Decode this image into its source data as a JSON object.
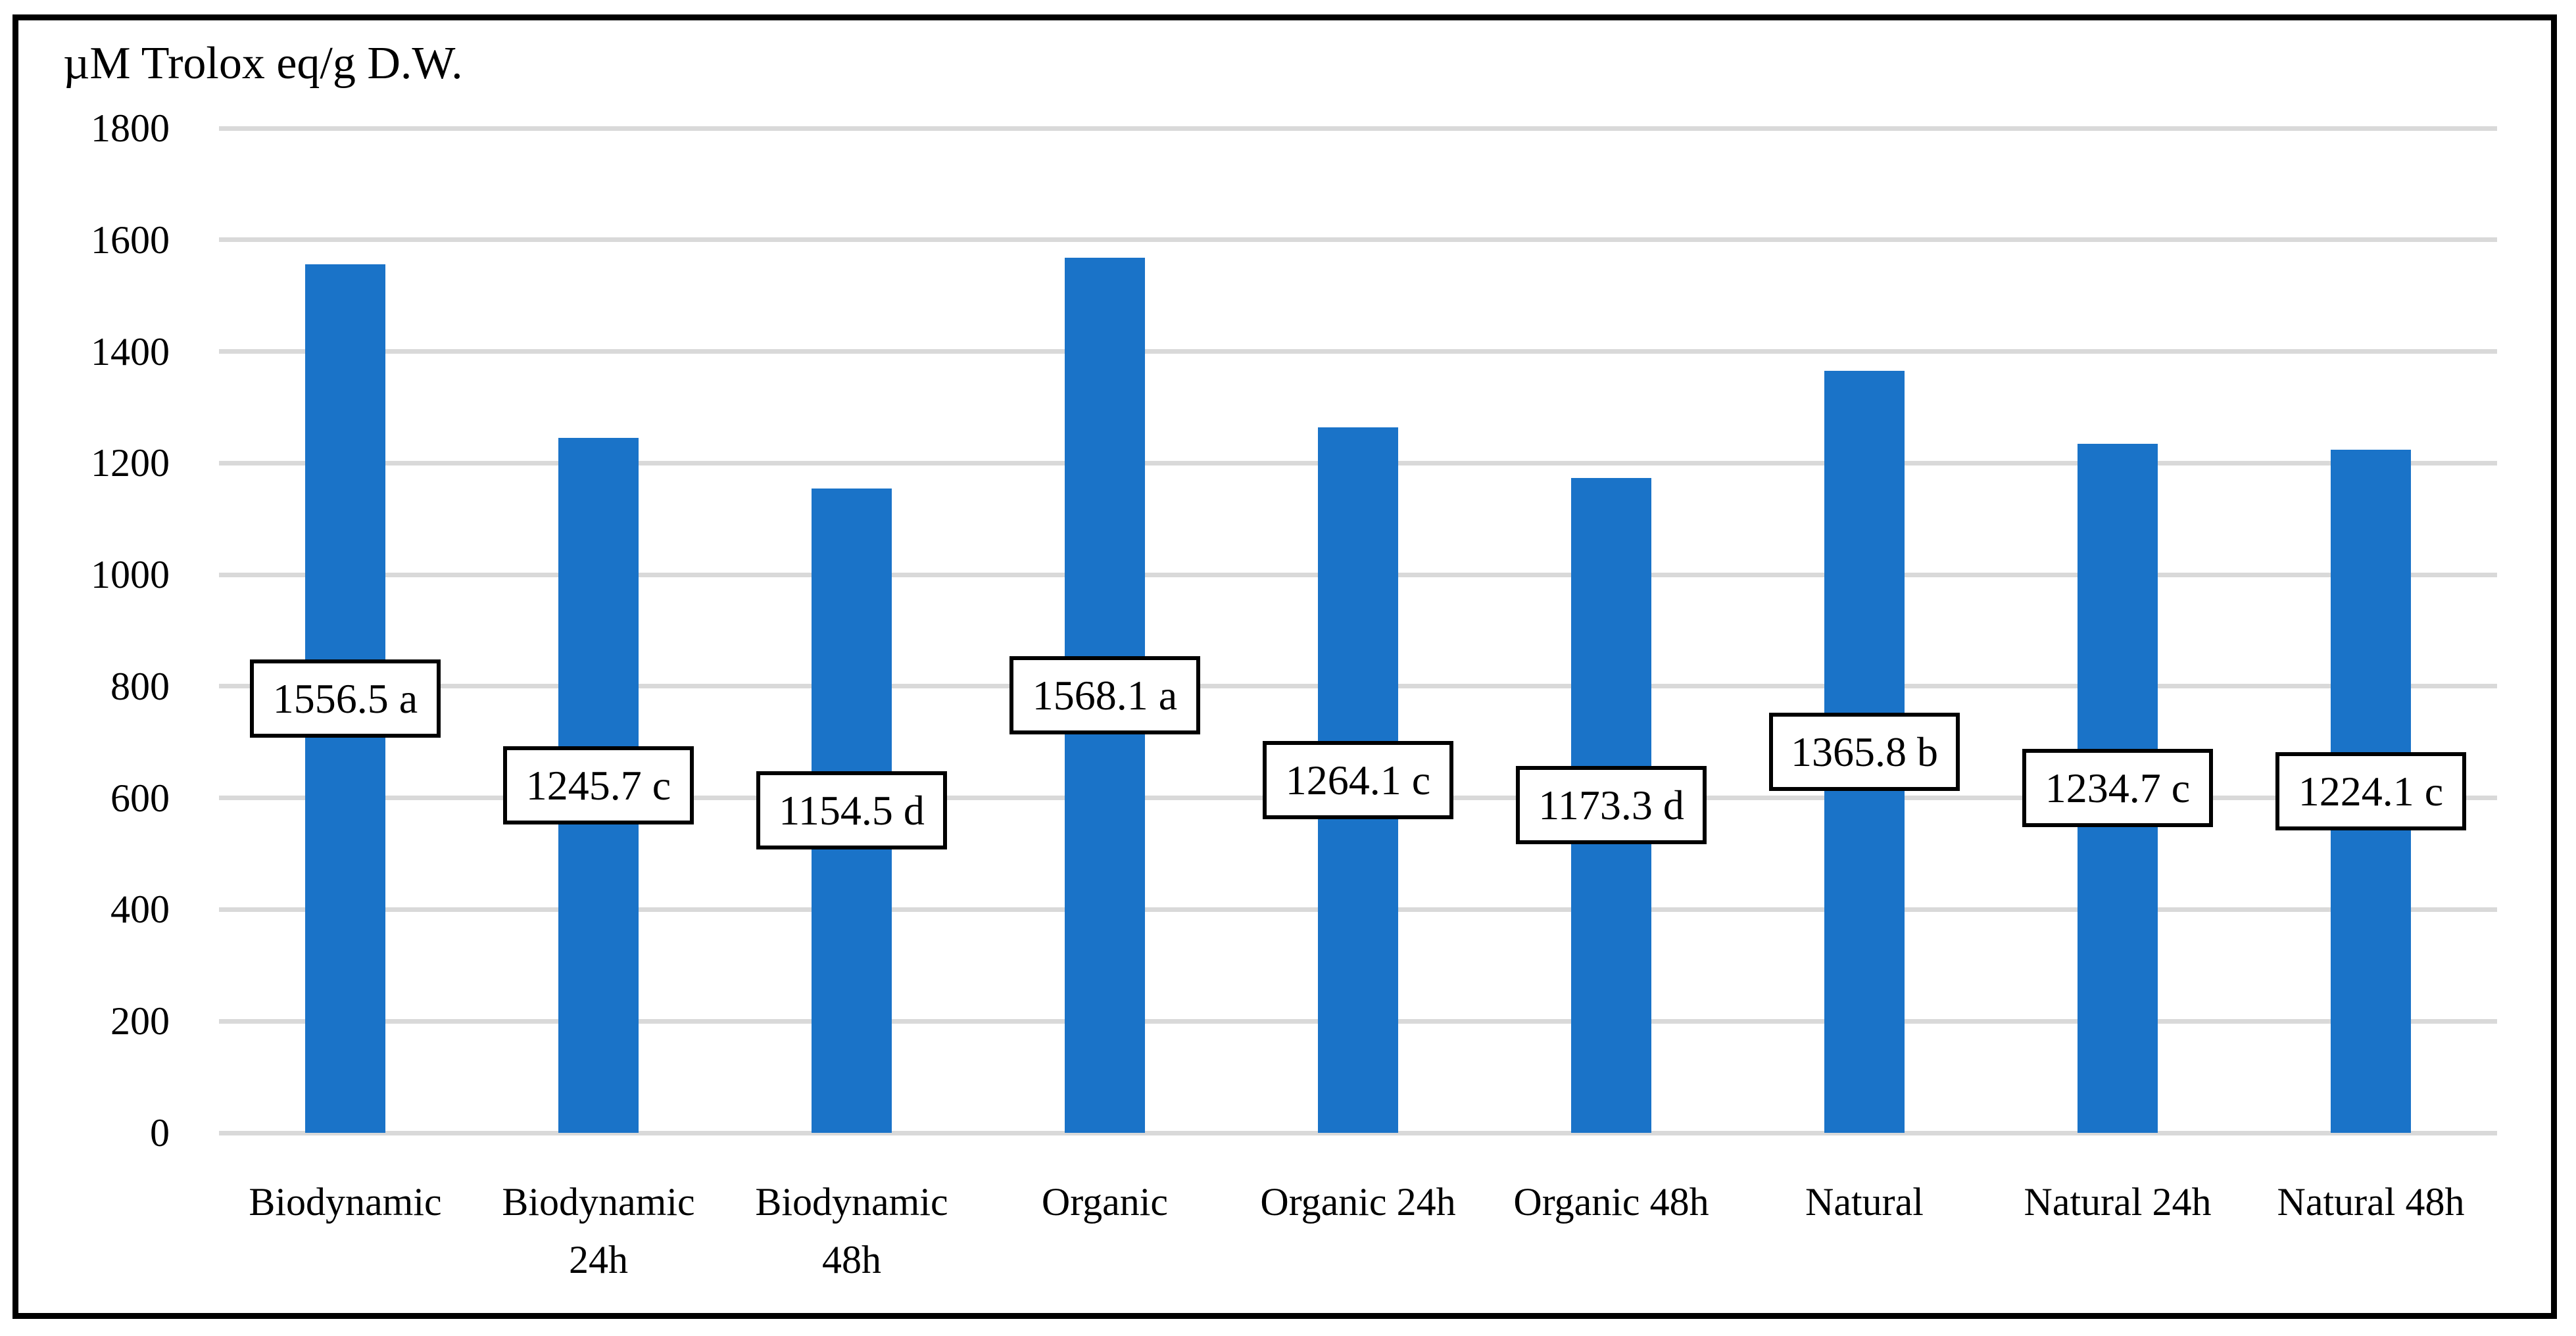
{
  "chart_data": {
    "type": "bar",
    "title": "µM Trolox eq/g D.W.",
    "categories": [
      "Biodynamic",
      "Biodynamic 24h",
      "Biodynamic 48h",
      "Organic",
      "Organic 24h",
      "Organic 48h",
      "Natural",
      "Natural 24h",
      "Natural 48h"
    ],
    "values": [
      1556.5,
      1245.7,
      1154.5,
      1568.1,
      1264.1,
      1173.3,
      1365.8,
      1234.7,
      1224.1
    ],
    "significance_letters": [
      "a",
      "c",
      "d",
      "a",
      "c",
      "d",
      "b",
      "c",
      "c"
    ],
    "data_labels": [
      "1556.5 a",
      "1245.7 c",
      "1154.5 d",
      "1568.1 a",
      "1264.1 c",
      "1173.3 d",
      "1365.8 b",
      "1234.7 c",
      "1224.1 c"
    ],
    "xlabel": "",
    "ylabel": "µM Trolox eq/g D.W.",
    "ylim": [
      0,
      1800
    ],
    "ytick_step": 200,
    "yticks": [
      0,
      200,
      400,
      600,
      800,
      1000,
      1200,
      1400,
      1600,
      1800
    ],
    "grid": true,
    "legend": false,
    "colors": {
      "bar": "#1A73C8",
      "gridline": "#D9D9D9",
      "label_box_fill": "#FFFFFF",
      "label_box_border": "#000000",
      "frame_border": "#000000",
      "text": "#000000"
    }
  }
}
